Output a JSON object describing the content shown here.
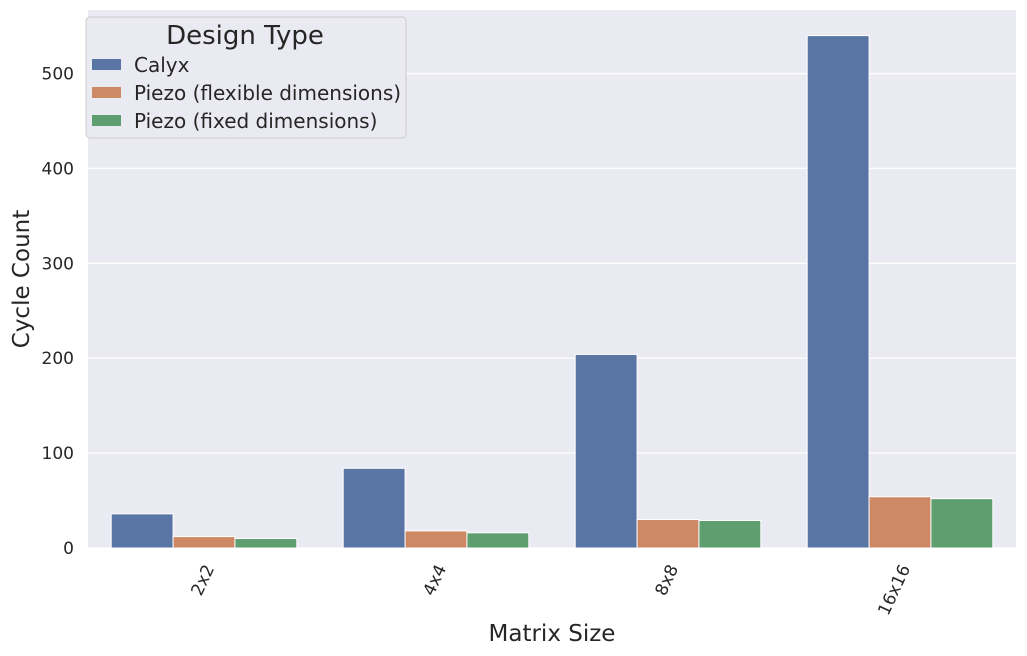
{
  "chart_data": {
    "type": "bar",
    "xlabel": "Matrix Size",
    "ylabel": "Cycle Count",
    "categories": [
      "2x2",
      "4x4",
      "8x8",
      "16x16"
    ],
    "series": [
      {
        "name": "Calyx",
        "color": "#5875a4",
        "values": [
          36,
          84,
          204,
          540
        ]
      },
      {
        "name": "Piezo (flexible dimensions)",
        "color": "#cc8963",
        "values": [
          12,
          18,
          30,
          54
        ]
      },
      {
        "name": "Piezo (fixed dimensions)",
        "color": "#5f9e6e",
        "values": [
          10,
          16,
          29,
          52
        ]
      }
    ],
    "yticks": [
      0,
      100,
      200,
      300,
      400,
      500
    ],
    "ylim": [
      0,
      567
    ],
    "grid": true,
    "legend": {
      "title": "Design Type",
      "position": "top-left"
    },
    "background_color": "#eaeaf2"
  }
}
